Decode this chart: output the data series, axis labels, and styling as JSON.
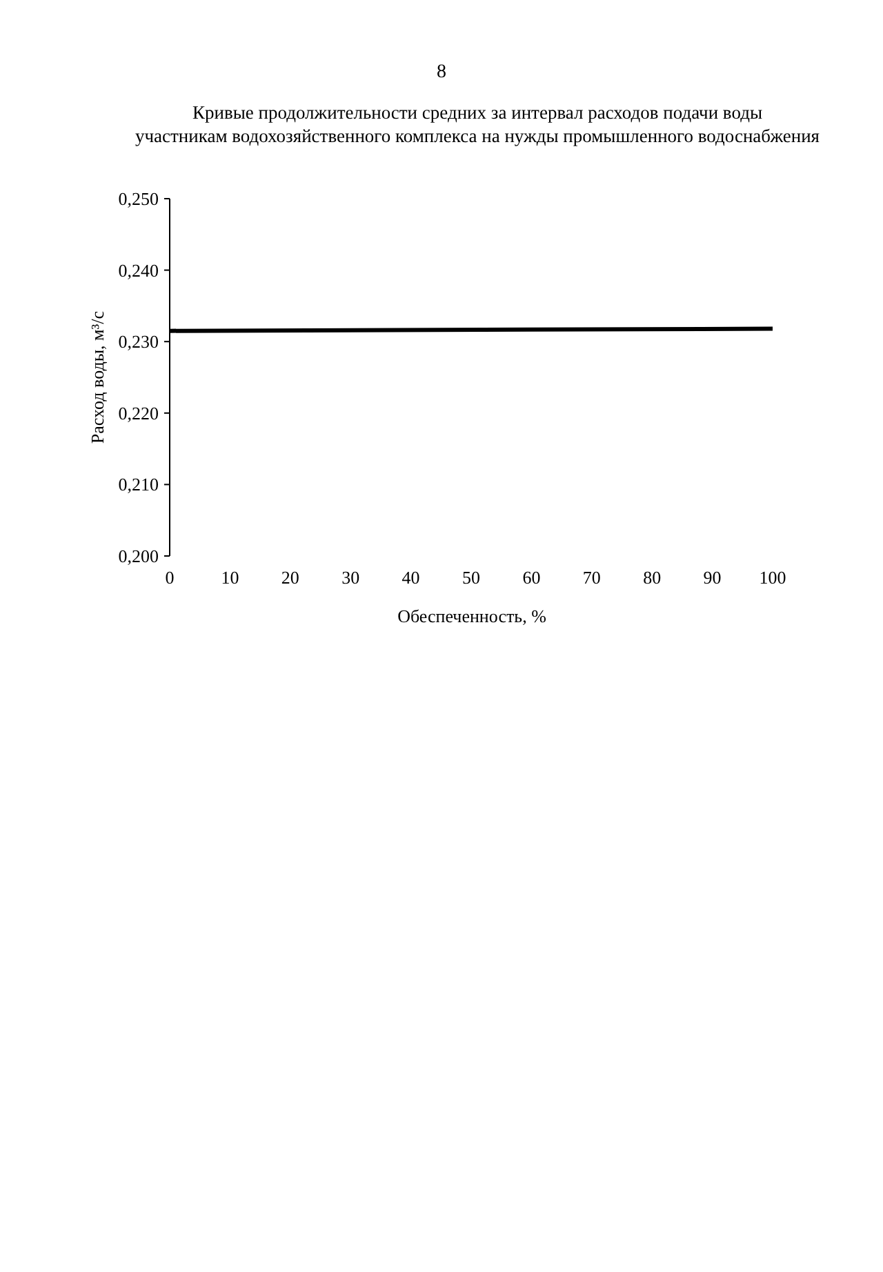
{
  "chart_data": {
    "type": "line",
    "title": "Кривые продолжительности средних за интервал расходов подачи воды\nучастникам водохозяйственного комплекса на нужды промышленного водоснабжения",
    "xlabel": "Обеспеченность, %",
    "ylabel": "Расход воды, м³/с",
    "annotations": [
      "8"
    ],
    "x": [
      0,
      100
    ],
    "series": [
      {
        "color": "#000000",
        "values": [
          0.2315,
          0.2318
        ]
      }
    ],
    "xlim": [
      0,
      100
    ],
    "xticks": [
      0,
      10,
      20,
      30,
      40,
      50,
      60,
      70,
      80,
      90,
      100
    ],
    "ylim": [
      0.2,
      0.25
    ],
    "yticks": [
      {
        "value": 0.2,
        "label": "0,200"
      },
      {
        "value": 0.21,
        "label": "0,210"
      },
      {
        "value": 0.22,
        "label": "0,220"
      },
      {
        "value": 0.23,
        "label": "0,230"
      },
      {
        "value": 0.24,
        "label": "0,240"
      },
      {
        "value": 0.25,
        "label": "0,250"
      }
    ],
    "marker": "none",
    "line_style": "solid"
  }
}
